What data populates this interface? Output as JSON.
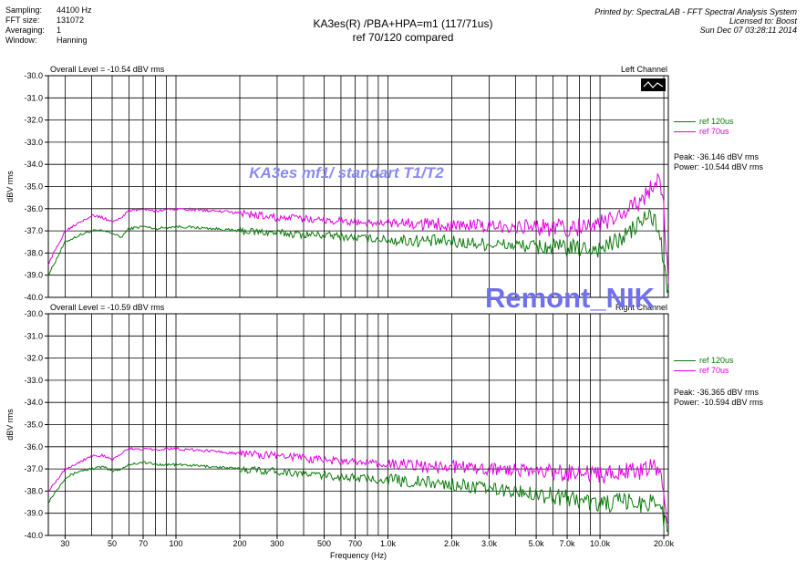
{
  "header": {
    "meta": [
      {
        "label": "Sampling:",
        "value": "44100 Hz"
      },
      {
        "label": "FFT size:",
        "value": "131072"
      },
      {
        "label": "Averaging:",
        "value": "1"
      },
      {
        "label": "Window:",
        "value": "Hanning"
      }
    ],
    "title_line1": "KA3es(R) /PBA+HPA=m1 (117/71us)",
    "title_line2": "ref 70/120 compared",
    "printed_by": "Printed by: SpectraLAB - FFT Spectral Analysis System",
    "licensed_to": "Licensed to: Boost",
    "printed_date": "Sun Dec 07 03:28:11 2014"
  },
  "annotation_text": "KA3es mf1/ standart T1/T2",
  "watermark_text": "Remont_NIK",
  "colors": {
    "green": "#0a7a0a",
    "magenta": "#e000e0",
    "annotation": "#8a8af0",
    "watermark": "#7070ee"
  },
  "chart_data": [
    {
      "type": "line",
      "overall_level": "Overall Level = -10.54 dBV rms",
      "channel": "Left Channel",
      "ylabel": "dBV rms",
      "xlabel": "",
      "x_scale": "log",
      "xlim": [
        25,
        21000
      ],
      "ylim": [
        -40.0,
        -30.0
      ],
      "y_ticks": [
        "-30.0",
        "-31.0",
        "-32.0",
        "-33.0",
        "-34.0",
        "-35.0",
        "-36.0",
        "-37.0",
        "-38.0",
        "-39.0",
        "-40.0"
      ],
      "grid": true,
      "legend_position": "right",
      "series": [
        {
          "name": "ref 120us",
          "color": "#0a7a0a",
          "x": [
            25,
            30,
            35,
            40,
            45,
            50,
            55,
            60,
            70,
            80,
            100,
            150,
            200,
            300,
            500,
            700,
            1000,
            2000,
            3000,
            5000,
            7000,
            10000,
            12000,
            14000,
            16000,
            17000,
            18000,
            19000,
            20000,
            21000
          ],
          "y": [
            -39.0,
            -37.5,
            -37.2,
            -37.0,
            -37.0,
            -37.1,
            -37.3,
            -36.9,
            -36.8,
            -36.9,
            -36.8,
            -36.9,
            -37.0,
            -37.1,
            -37.2,
            -37.3,
            -37.4,
            -37.5,
            -37.6,
            -37.7,
            -37.8,
            -37.8,
            -37.5,
            -37.0,
            -36.5,
            -36.3,
            -36.5,
            -37.0,
            -38.5,
            -40.0
          ]
        },
        {
          "name": "ref 70us",
          "color": "#e000e0",
          "x": [
            25,
            30,
            35,
            40,
            45,
            50,
            55,
            60,
            70,
            80,
            100,
            150,
            200,
            300,
            500,
            700,
            1000,
            2000,
            3000,
            5000,
            7000,
            10000,
            12000,
            14000,
            16000,
            17000,
            18000,
            19000,
            20000,
            21000
          ],
          "y": [
            -38.5,
            -37.0,
            -36.6,
            -36.3,
            -36.4,
            -36.6,
            -36.4,
            -36.1,
            -36.0,
            -36.1,
            -36.0,
            -36.1,
            -36.2,
            -36.4,
            -36.5,
            -36.6,
            -36.7,
            -36.7,
            -36.8,
            -36.8,
            -36.9,
            -36.7,
            -36.4,
            -36.0,
            -35.5,
            -35.2,
            -34.8,
            -34.5,
            -36.0,
            -39.5
          ]
        }
      ],
      "stats": {
        "peak": "Peak: -36.146 dBV rms",
        "power": "Power: -10.544 dBV rms"
      }
    },
    {
      "type": "line",
      "overall_level": "Overall Level = -10.59 dBV rms",
      "channel": "Right Channel",
      "ylabel": "dBV rms",
      "xlabel": "Frequency (Hz)",
      "x_scale": "log",
      "xlim": [
        25,
        21000
      ],
      "ylim": [
        -40.0,
        -30.0
      ],
      "y_ticks": [
        "-30.0",
        "-31.0",
        "-32.0",
        "-33.0",
        "-34.0",
        "-35.0",
        "-36.0",
        "-37.0",
        "-38.0",
        "-39.0",
        "-40.0"
      ],
      "x_ticks": [
        {
          "value": 30,
          "label": "30"
        },
        {
          "value": 50,
          "label": "50"
        },
        {
          "value": 70,
          "label": "70"
        },
        {
          "value": 100,
          "label": "100"
        },
        {
          "value": 200,
          "label": "200"
        },
        {
          "value": 300,
          "label": "300"
        },
        {
          "value": 500,
          "label": "500"
        },
        {
          "value": 700,
          "label": "700"
        },
        {
          "value": 1000,
          "label": "1.0k"
        },
        {
          "value": 2000,
          "label": "2.0k"
        },
        {
          "value": 3000,
          "label": "3.0k"
        },
        {
          "value": 5000,
          "label": "5.0k"
        },
        {
          "value": 7000,
          "label": "7.0k"
        },
        {
          "value": 10000,
          "label": "10.0k"
        },
        {
          "value": 20000,
          "label": "20.0k"
        }
      ],
      "grid": true,
      "legend_position": "right",
      "series": [
        {
          "name": "ref 120us",
          "color": "#0a7a0a",
          "x": [
            25,
            30,
            35,
            40,
            45,
            50,
            55,
            60,
            70,
            80,
            100,
            150,
            200,
            300,
            500,
            700,
            1000,
            2000,
            3000,
            5000,
            7000,
            10000,
            12000,
            14000,
            16000,
            17000,
            18000,
            19000,
            20000,
            21000
          ],
          "y": [
            -38.5,
            -37.4,
            -37.1,
            -37.0,
            -36.9,
            -37.1,
            -37.0,
            -36.8,
            -36.7,
            -36.8,
            -36.8,
            -36.9,
            -37.0,
            -37.1,
            -37.3,
            -37.4,
            -37.5,
            -37.7,
            -37.9,
            -38.1,
            -38.3,
            -38.6,
            -38.5,
            -38.5,
            -38.6,
            -38.5,
            -38.3,
            -38.6,
            -39.2,
            -40.0
          ]
        },
        {
          "name": "ref 70us",
          "color": "#e000e0",
          "x": [
            25,
            30,
            35,
            40,
            45,
            50,
            55,
            60,
            70,
            80,
            100,
            150,
            200,
            300,
            500,
            700,
            1000,
            2000,
            3000,
            5000,
            7000,
            10000,
            12000,
            14000,
            16000,
            17000,
            18000,
            19000,
            20000,
            21000
          ],
          "y": [
            -38.0,
            -37.0,
            -36.7,
            -36.4,
            -36.4,
            -36.6,
            -36.3,
            -36.1,
            -36.1,
            -36.1,
            -36.1,
            -36.2,
            -36.3,
            -36.4,
            -36.6,
            -36.7,
            -36.8,
            -36.9,
            -37.0,
            -37.1,
            -37.2,
            -37.3,
            -37.2,
            -37.1,
            -37.1,
            -37.0,
            -36.9,
            -37.2,
            -38.0,
            -39.5
          ]
        }
      ],
      "stats": {
        "peak": "Peak: -36.365 dBV rms",
        "power": "Power: -10.594 dBV rms"
      }
    }
  ]
}
